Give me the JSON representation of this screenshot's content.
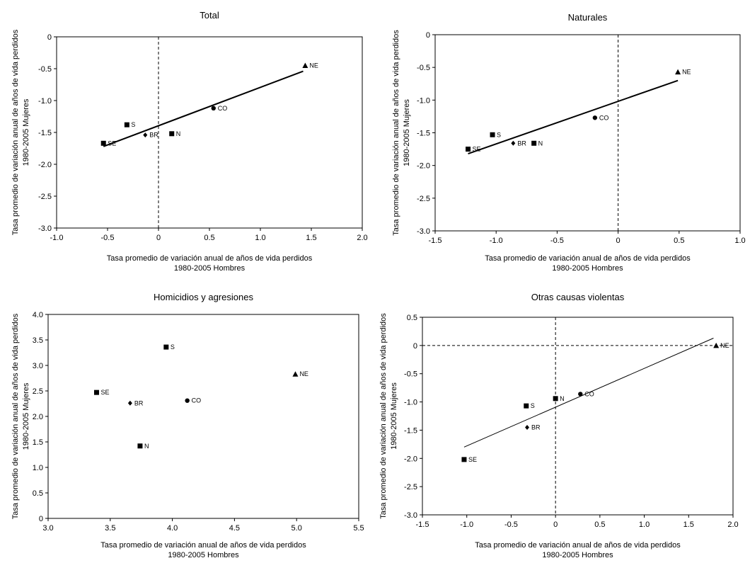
{
  "chart_data": [
    {
      "type": "scatter",
      "title": "Total",
      "xlabel": [
        "Tasa promedio de variación anual de años de vida perdidos",
        "1980-2005 Hombres"
      ],
      "ylabel": [
        "Tasa promedio de variación anual de años de vida perdidos",
        "1980-2005 Mujeres"
      ],
      "xlim": [
        -1.0,
        2.0
      ],
      "ylim": [
        -3.0,
        0
      ],
      "xticks": [
        "-1.0",
        "-0.5",
        "0",
        "0.5",
        "1.0",
        "1.5",
        "2.0"
      ],
      "yticks": [
        "0",
        "-0.5",
        "-1.0",
        "-1.5",
        "-2.0",
        "-2.5",
        "-3.0"
      ],
      "xtick_values": [
        -1.0,
        -0.5,
        0,
        0.5,
        1.0,
        1.5,
        2.0
      ],
      "ytick_values": [
        0,
        -0.5,
        -1.0,
        -1.5,
        -2.0,
        -2.5,
        -3.0
      ],
      "reference_lines": {
        "x0": true,
        "y0": true
      },
      "points": [
        {
          "label": "NE",
          "x": 1.44,
          "y": -0.45,
          "marker": "triangle"
        },
        {
          "label": "CO",
          "x": 0.54,
          "y": -1.12,
          "marker": "circle"
        },
        {
          "label": "S",
          "x": -0.31,
          "y": -1.38,
          "marker": "square"
        },
        {
          "label": "N",
          "x": 0.13,
          "y": -1.52,
          "marker": "square"
        },
        {
          "label": "BR",
          "x": -0.13,
          "y": -1.54,
          "marker": "diamond"
        },
        {
          "label": "SE",
          "x": -0.54,
          "y": -1.67,
          "marker": "square"
        }
      ],
      "trendline": {
        "x1": -0.54,
        "y1": -1.72,
        "x2": 1.42,
        "y2": -0.54,
        "width": 2
      }
    },
    {
      "type": "scatter",
      "title": "Naturales",
      "xlabel": [
        "Tasa promedio de variación anual de años de vida perdidos",
        "1980-2005 Hombres"
      ],
      "ylabel": [
        "Tasa promedio de variación anual de años de vida perdidos",
        "1980-2005 Mujeres"
      ],
      "xlim": [
        -1.5,
        1.0
      ],
      "ylim": [
        -3.0,
        0
      ],
      "xticks": [
        "-1.5",
        "-1.0",
        "-0.5",
        "0",
        "0.5",
        "1.0"
      ],
      "yticks": [
        "0",
        "-0.5",
        "-1.0",
        "-1.5",
        "-2.0",
        "-2.5",
        "-3.0"
      ],
      "xtick_values": [
        -1.5,
        -1.0,
        -0.5,
        0,
        0.5,
        1.0
      ],
      "ytick_values": [
        0,
        -0.5,
        -1.0,
        -1.5,
        -2.0,
        -2.5,
        -3.0
      ],
      "reference_lines": {
        "x0": true,
        "y0": true
      },
      "points": [
        {
          "label": "NE",
          "x": 0.49,
          "y": -0.57,
          "marker": "triangle"
        },
        {
          "label": "CO",
          "x": -0.19,
          "y": -1.27,
          "marker": "circle"
        },
        {
          "label": "S",
          "x": -1.03,
          "y": -1.53,
          "marker": "square"
        },
        {
          "label": "BR",
          "x": -0.86,
          "y": -1.66,
          "marker": "diamond"
        },
        {
          "label": "N",
          "x": -0.69,
          "y": -1.66,
          "marker": "square"
        },
        {
          "label": "SE",
          "x": -1.23,
          "y": -1.75,
          "marker": "square"
        }
      ],
      "trendline": {
        "x1": -1.23,
        "y1": -1.82,
        "x2": 0.49,
        "y2": -0.7,
        "width": 2
      }
    },
    {
      "type": "scatter",
      "title": "Homicidios y agresiones",
      "xlabel": [
        "Tasa promedio de variación anual de años de vida perdidos",
        "1980-2005  Hombres"
      ],
      "ylabel": [
        "Tasa promedio de variación anual de años de vida perdidos",
        "1980-2005  Mujeres"
      ],
      "xlim": [
        3.0,
        5.5
      ],
      "ylim": [
        0,
        4.0
      ],
      "xticks": [
        "3.0",
        "3.5",
        "4.0",
        "4.5",
        "5.0",
        "5.5"
      ],
      "yticks": [
        "4.0",
        "3.5",
        "3.0",
        "2.5",
        "2.0",
        "1.5",
        "1.0",
        "0.5",
        "0"
      ],
      "xtick_values": [
        3.0,
        3.5,
        4.0,
        4.5,
        5.0,
        5.5
      ],
      "ytick_values": [
        4.0,
        3.5,
        3.0,
        2.5,
        2.0,
        1.5,
        1.0,
        0.5,
        0
      ],
      "reference_lines": {
        "x0": false,
        "y0": false
      },
      "points": [
        {
          "label": "S",
          "x": 3.95,
          "y": 3.36,
          "marker": "square"
        },
        {
          "label": "NE",
          "x": 4.99,
          "y": 2.83,
          "marker": "triangle"
        },
        {
          "label": "SE",
          "x": 3.39,
          "y": 2.47,
          "marker": "square"
        },
        {
          "label": "CO",
          "x": 4.12,
          "y": 2.31,
          "marker": "circle"
        },
        {
          "label": "BR",
          "x": 3.66,
          "y": 2.26,
          "marker": "diamond"
        },
        {
          "label": "N",
          "x": 3.74,
          "y": 1.42,
          "marker": "square"
        }
      ],
      "trendline": null
    },
    {
      "type": "scatter",
      "title": "Otras causas violentas",
      "xlabel": [
        "Tasa promedio de variación anual de años de vida perdidos",
        "1980-2005 Hombres"
      ],
      "ylabel": [
        "Tasa promedio de variación anual de años de vida perdidos",
        "1980-2005 Mujeres"
      ],
      "xlim": [
        -1.5,
        2.0
      ],
      "ylim": [
        -3.0,
        0.5
      ],
      "xticks": [
        "-1.5",
        "-1.0",
        "-0.5",
        "0",
        "0.5",
        "1.0",
        "1.5",
        "2.0"
      ],
      "yticks": [
        "0.5",
        "0",
        "-0.5",
        "-1.0",
        "-1.5",
        "-2.0",
        "-2.5",
        "-3.0"
      ],
      "xtick_values": [
        -1.5,
        -1.0,
        -0.5,
        0,
        0.5,
        1.0,
        1.5,
        2.0
      ],
      "ytick_values": [
        0.5,
        0,
        -0.5,
        -1.0,
        -1.5,
        -2.0,
        -2.5,
        -3.0
      ],
      "reference_lines": {
        "x0": true,
        "y0": true
      },
      "points": [
        {
          "label": "NE",
          "x": 1.81,
          "y": 0.0,
          "marker": "triangle"
        },
        {
          "label": "CO",
          "x": 0.28,
          "y": -0.86,
          "marker": "circle"
        },
        {
          "label": "N",
          "x": 0.0,
          "y": -0.94,
          "marker": "square"
        },
        {
          "label": "S",
          "x": -0.33,
          "y": -1.07,
          "marker": "square"
        },
        {
          "label": "BR",
          "x": -0.32,
          "y": -1.45,
          "marker": "diamond"
        },
        {
          "label": "SE",
          "x": -1.03,
          "y": -2.02,
          "marker": "square"
        }
      ],
      "trendline": {
        "x1": -1.03,
        "y1": -1.8,
        "x2": 1.78,
        "y2": 0.13,
        "width": 1
      }
    }
  ]
}
